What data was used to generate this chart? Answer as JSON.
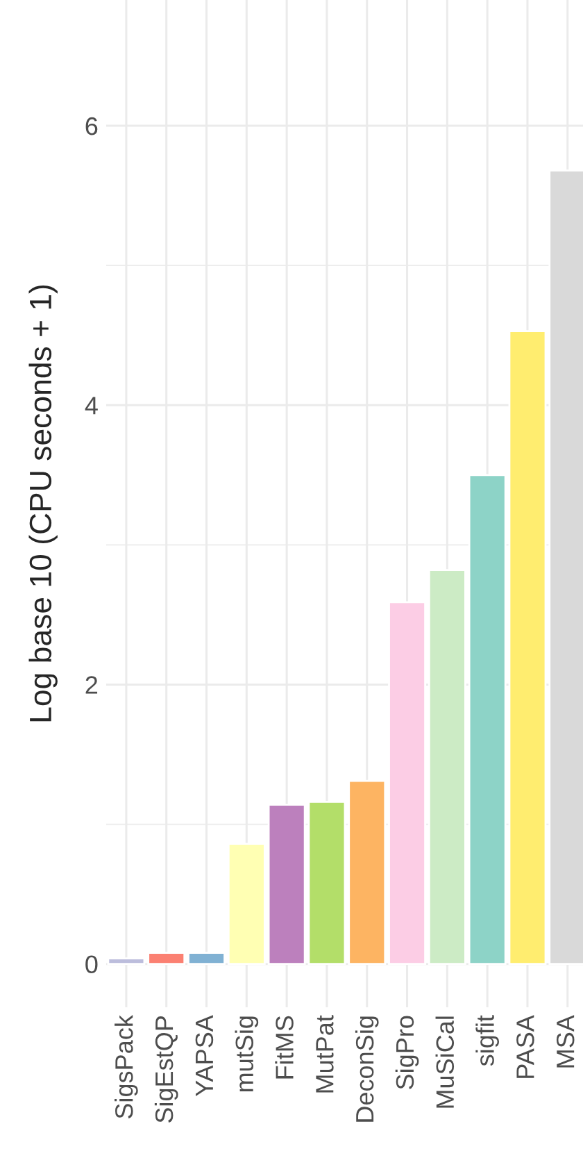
{
  "chart_data": {
    "type": "bar",
    "ylabel": "Log base 10 (CPU seconds + 1)",
    "categories": [
      "SigsPack",
      "SigEstQP",
      "YAPSA",
      "mutSig",
      "FitMS",
      "MutPat",
      "DeconSig",
      "SigPro",
      "MuSiCal",
      "sigfit",
      "PASA",
      "MSA"
    ],
    "values": [
      0.04,
      0.08,
      0.08,
      0.86,
      1.14,
      1.16,
      1.31,
      2.59,
      2.82,
      3.5,
      4.53,
      5.68
    ],
    "colors": [
      "#bcbddc",
      "#fb8072",
      "#80b1d3",
      "#ffffb3",
      "#bc80bd",
      "#b3de69",
      "#fdb462",
      "#fccde5",
      "#ccebc5",
      "#8dd3c7",
      "#ffed6f",
      "#d9d9d9"
    ],
    "ylim": [
      -0.31,
      6.9
    ],
    "yticks": [
      0,
      {
        "value": 1,
        "label": null
      },
      2,
      {
        "value": 3,
        "label": null
      },
      4,
      {
        "value": 5,
        "label": null
      },
      6
    ],
    "grid": true
  }
}
